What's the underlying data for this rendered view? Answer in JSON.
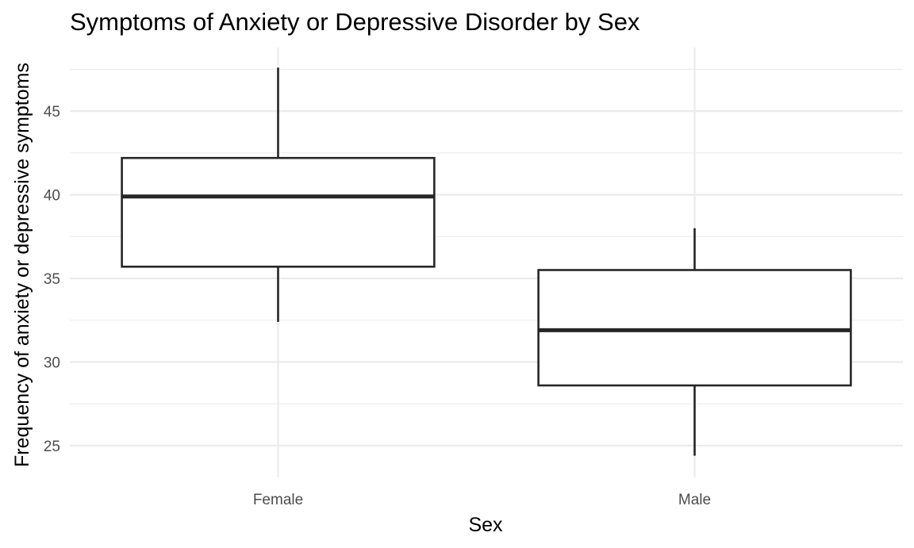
{
  "chart_data": {
    "type": "boxplot",
    "title": "Symptoms of Anxiety or Depressive Disorder by Sex",
    "xlabel": "Sex",
    "ylabel": "Frequency of anxiety or depressive symptoms",
    "categories": [
      "Female",
      "Male"
    ],
    "boxes": [
      {
        "category": "Female",
        "min": 32.4,
        "q1": 35.7,
        "median": 39.9,
        "q3": 42.2,
        "max": 47.6
      },
      {
        "category": "Male",
        "min": 24.4,
        "q1": 28.6,
        "median": 31.9,
        "q3": 35.5,
        "max": 38.0
      }
    ],
    "yticks": [
      25,
      30,
      35,
      40,
      45
    ],
    "ylim": [
      23.1,
      48.8
    ],
    "grid": true,
    "legend": "none",
    "colors": {
      "box_fill": "#ffffff",
      "box_stroke": "#262626",
      "grid": "#ebebeb"
    }
  }
}
